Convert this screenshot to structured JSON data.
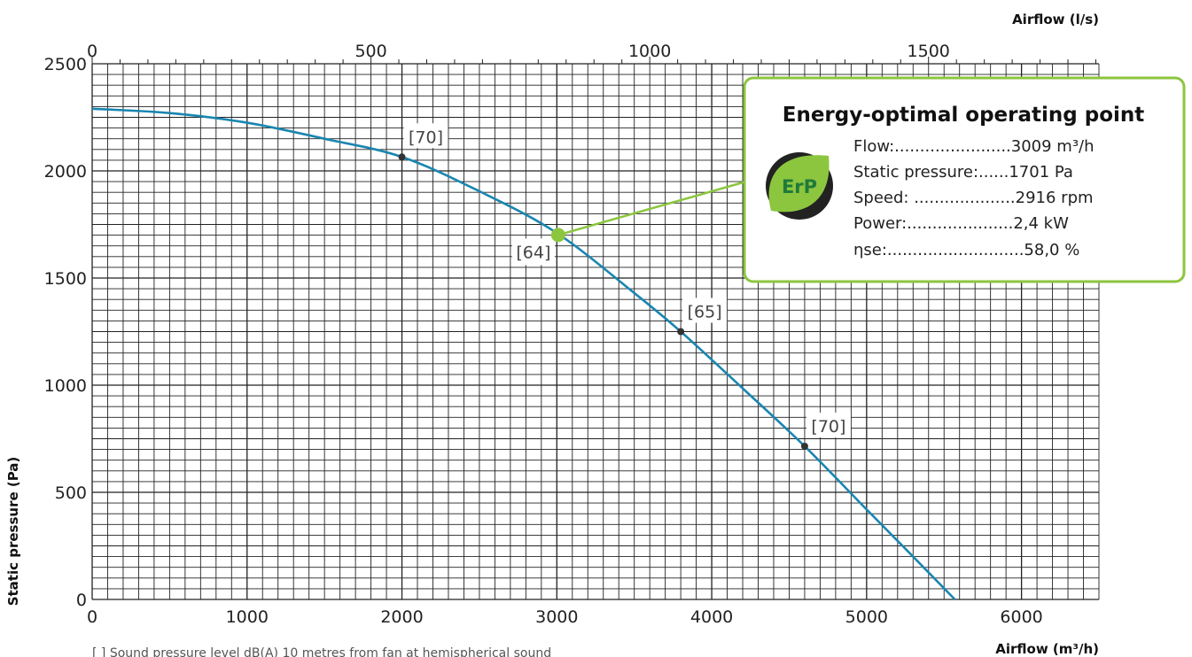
{
  "chart_data": {
    "type": "line",
    "title": "",
    "xlabel": "Airflow (m³/h)",
    "x2label": "Airflow (l/s)",
    "ylabel": "Static pressure (Pa)",
    "xlim": [
      0,
      6500
    ],
    "ylim": [
      0,
      2500
    ],
    "x2lim": [
      0,
      1805.6
    ],
    "x_ticks": [
      0,
      1000,
      2000,
      3000,
      4000,
      5000,
      6000
    ],
    "x2_ticks": [
      0,
      500,
      1000,
      1500
    ],
    "y_ticks": [
      0,
      500,
      1000,
      1500,
      2000,
      2500
    ],
    "grid": true,
    "series": [
      {
        "name": "",
        "color": "#1a86b0",
        "x": [
          0,
          500,
          1000,
          1500,
          2000,
          2500,
          3000,
          3500,
          3800,
          4200,
          4600,
          5000,
          5300,
          5570
        ],
        "y": [
          2290,
          2270,
          2225,
          2150,
          2065,
          1905,
          1710,
          1430,
          1250,
          985,
          715,
          420,
          200,
          0
        ]
      }
    ],
    "sound_points": [
      {
        "x": 2000,
        "y": 2065,
        "label": "[70]"
      },
      {
        "x": 3800,
        "y": 1250,
        "label": "[65]"
      },
      {
        "x": 4600,
        "y": 715,
        "label": "[70]"
      }
    ],
    "operating_point": {
      "x": 3009,
      "y": 1701,
      "label": "[64]",
      "color": "#8cc63f"
    },
    "info_box": {
      "title": "Energy-optimal operating point",
      "badge": "ErP",
      "rows": [
        "Flow:.......................3009 m³/h",
        "Static pressure:......1701 Pa",
        "Speed: ....................2916 rpm",
        "Power:.....................2,4 kW",
        "ηse:...........................58,0 %"
      ],
      "border_color": "#8cc63f"
    },
    "footnote": "[ ]  Sound pressure level dB(A) 10 metres from fan at hemispherical sound"
  }
}
